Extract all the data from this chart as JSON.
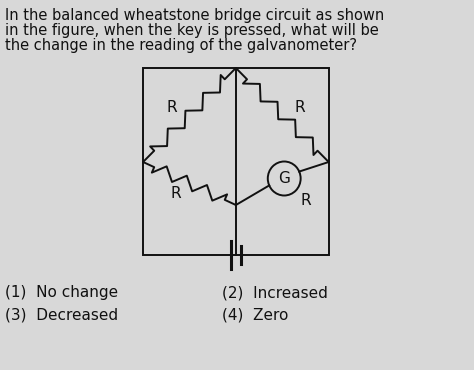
{
  "title_line1": "In the balanced wheatstone bridge circuit as shown",
  "title_line2": "in the figure, when the key is pressed, what will be",
  "title_line3": "the change in the reading of the galvanometer?",
  "option1": "(1)  No change",
  "option2": "(2)  Increased",
  "option3": "(3)  Decreased",
  "option4": "(4)  Zero",
  "bg_color": "#d8d8d8",
  "circuit_color": "#111111",
  "resistor_label": "R",
  "galvanometer_label": "G",
  "font_size_text": 10.5,
  "font_size_circuit": 11,
  "font_size_options": 11
}
